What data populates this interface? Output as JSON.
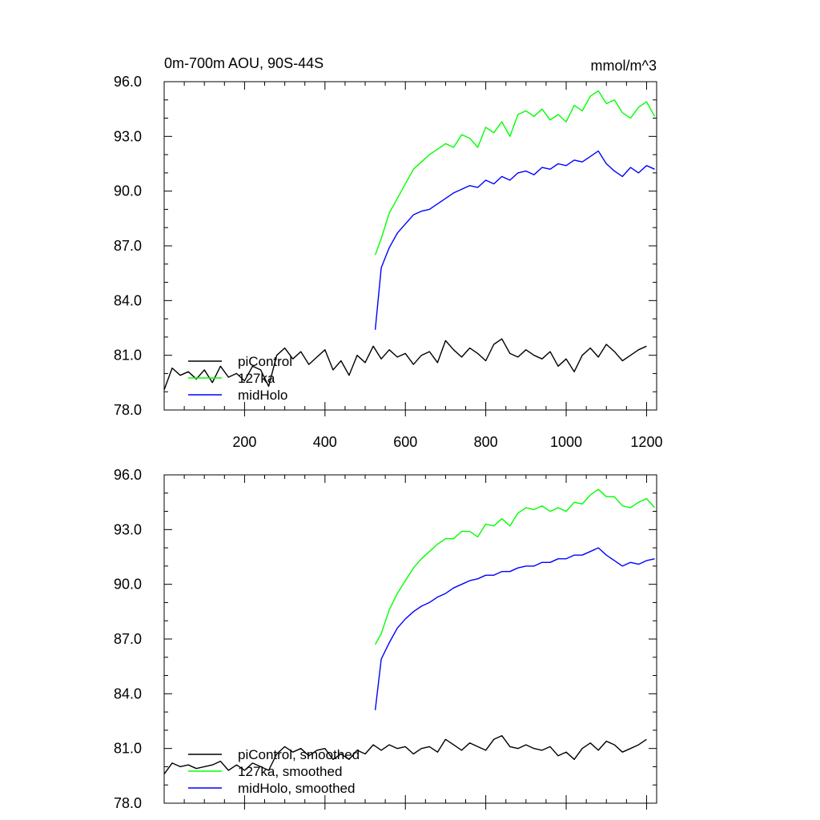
{
  "figure": {
    "title_left": "0m-700m AOU, 90S-44S",
    "title_right": "mmol/m^3"
  },
  "chart_data": [
    {
      "type": "line",
      "xlim": [
        0,
        1225
      ],
      "ylim": [
        78,
        96
      ],
      "yticks": [
        "78.0",
        "81.0",
        "84.0",
        "87.0",
        "90.0",
        "93.0",
        "96.0"
      ],
      "xticks": [
        "200",
        "400",
        "600",
        "800",
        "1000",
        "1200"
      ],
      "legend_position": "bottom-left",
      "series": [
        {
          "name": "piControl",
          "color": "#000000",
          "x": [
            0,
            20,
            40,
            60,
            80,
            100,
            120,
            140,
            160,
            180,
            200,
            220,
            240,
            260,
            280,
            300,
            320,
            340,
            360,
            380,
            400,
            420,
            440,
            460,
            480,
            500,
            520,
            540,
            560,
            580,
            600,
            620,
            640,
            660,
            680,
            700,
            720,
            740,
            760,
            780,
            800,
            820,
            840,
            860,
            880,
            900,
            920,
            940,
            960,
            980,
            1000,
            1020,
            1040,
            1060,
            1080,
            1100,
            1120,
            1140,
            1160,
            1180,
            1200
          ],
          "values": [
            79.1,
            80.3,
            79.9,
            80.1,
            79.7,
            80.2,
            79.5,
            80.4,
            79.8,
            80.0,
            79.6,
            80.4,
            80.2,
            79.3,
            81.0,
            81.4,
            80.8,
            81.2,
            80.5,
            80.9,
            81.3,
            80.2,
            80.7,
            79.9,
            81.0,
            80.6,
            81.5,
            80.8,
            81.3,
            80.9,
            81.1,
            80.5,
            81.0,
            81.2,
            80.6,
            81.8,
            81.3,
            80.9,
            81.4,
            81.1,
            80.7,
            81.6,
            81.9,
            81.1,
            80.9,
            81.3,
            81.0,
            80.8,
            81.2,
            80.4,
            80.8,
            80.1,
            81.0,
            81.4,
            80.9,
            81.6,
            81.2,
            80.7,
            81.0,
            81.3,
            81.5
          ]
        },
        {
          "name": "127ka",
          "color": "#00ff00",
          "x": [
            525,
            540,
            560,
            580,
            600,
            620,
            640,
            660,
            680,
            700,
            720,
            740,
            760,
            780,
            800,
            820,
            840,
            860,
            880,
            900,
            920,
            940,
            960,
            980,
            1000,
            1020,
            1040,
            1060,
            1080,
            1100,
            1120,
            1140,
            1160,
            1180,
            1200,
            1220
          ],
          "values": [
            86.5,
            87.4,
            88.8,
            89.6,
            90.4,
            91.2,
            91.6,
            92.0,
            92.3,
            92.6,
            92.4,
            93.1,
            92.9,
            92.4,
            93.5,
            93.2,
            93.8,
            93.0,
            94.2,
            94.4,
            94.1,
            94.5,
            93.9,
            94.2,
            93.8,
            94.7,
            94.4,
            95.2,
            95.5,
            94.8,
            95.0,
            94.3,
            94.0,
            94.6,
            94.9,
            94.1
          ]
        },
        {
          "name": "midHolo",
          "color": "#0000ff",
          "x": [
            525,
            540,
            560,
            580,
            600,
            620,
            640,
            660,
            680,
            700,
            720,
            740,
            760,
            780,
            800,
            820,
            840,
            860,
            880,
            900,
            920,
            940,
            960,
            980,
            1000,
            1020,
            1040,
            1060,
            1080,
            1100,
            1120,
            1140,
            1160,
            1180,
            1200,
            1220
          ],
          "values": [
            82.4,
            85.8,
            86.9,
            87.7,
            88.2,
            88.7,
            88.9,
            89.0,
            89.3,
            89.6,
            89.9,
            90.1,
            90.3,
            90.2,
            90.6,
            90.4,
            90.8,
            90.6,
            91.0,
            91.1,
            90.9,
            91.3,
            91.2,
            91.5,
            91.4,
            91.7,
            91.6,
            91.9,
            92.2,
            91.5,
            91.1,
            90.8,
            91.3,
            91.0,
            91.4,
            91.2
          ]
        }
      ]
    },
    {
      "type": "line",
      "xlim": [
        0,
        1225
      ],
      "ylim": [
        78,
        96
      ],
      "yticks": [
        "78.0",
        "81.0",
        "84.0",
        "87.0",
        "90.0",
        "93.0",
        "96.0"
      ],
      "xticks": [],
      "legend_position": "bottom-left",
      "series": [
        {
          "name": "piControl, smoothed",
          "color": "#000000",
          "x": [
            0,
            20,
            40,
            60,
            80,
            100,
            120,
            140,
            160,
            180,
            200,
            220,
            240,
            260,
            280,
            300,
            320,
            340,
            360,
            380,
            400,
            420,
            440,
            460,
            480,
            500,
            520,
            540,
            560,
            580,
            600,
            620,
            640,
            660,
            680,
            700,
            720,
            740,
            760,
            780,
            800,
            820,
            840,
            860,
            880,
            900,
            920,
            940,
            960,
            980,
            1000,
            1020,
            1040,
            1060,
            1080,
            1100,
            1120,
            1140,
            1160,
            1180,
            1200
          ],
          "values": [
            79.6,
            80.2,
            80.0,
            80.1,
            79.9,
            80.0,
            80.1,
            80.3,
            79.8,
            80.1,
            79.8,
            80.2,
            80.0,
            79.8,
            80.7,
            81.1,
            80.8,
            81.0,
            80.6,
            80.9,
            81.0,
            80.4,
            80.7,
            80.4,
            80.9,
            80.7,
            81.2,
            80.9,
            81.2,
            81.0,
            81.1,
            80.7,
            81.0,
            81.1,
            80.8,
            81.5,
            81.2,
            80.9,
            81.3,
            81.1,
            80.9,
            81.5,
            81.7,
            81.1,
            81.0,
            81.2,
            81.0,
            80.9,
            81.1,
            80.6,
            80.8,
            80.4,
            81.0,
            81.3,
            80.9,
            81.4,
            81.2,
            80.8,
            81.0,
            81.2,
            81.5
          ]
        },
        {
          "name": "127ka, smoothed",
          "color": "#00ff00",
          "x": [
            525,
            540,
            560,
            580,
            600,
            620,
            640,
            660,
            680,
            700,
            720,
            740,
            760,
            780,
            800,
            820,
            840,
            860,
            880,
            900,
            920,
            940,
            960,
            980,
            1000,
            1020,
            1040,
            1060,
            1080,
            1100,
            1120,
            1140,
            1160,
            1180,
            1200,
            1220
          ],
          "values": [
            86.7,
            87.3,
            88.6,
            89.5,
            90.2,
            90.9,
            91.4,
            91.8,
            92.2,
            92.5,
            92.5,
            92.9,
            92.9,
            92.6,
            93.3,
            93.2,
            93.6,
            93.2,
            93.9,
            94.2,
            94.1,
            94.3,
            94.0,
            94.2,
            94.0,
            94.5,
            94.4,
            94.9,
            95.2,
            94.8,
            94.8,
            94.3,
            94.2,
            94.5,
            94.7,
            94.2
          ]
        },
        {
          "name": "midHolo, smoothed",
          "color": "#0000ff",
          "x": [
            525,
            540,
            560,
            580,
            600,
            620,
            640,
            660,
            680,
            700,
            720,
            740,
            760,
            780,
            800,
            820,
            840,
            860,
            880,
            900,
            920,
            940,
            960,
            980,
            1000,
            1020,
            1040,
            1060,
            1080,
            1100,
            1120,
            1140,
            1160,
            1180,
            1200,
            1220
          ],
          "values": [
            83.1,
            85.9,
            86.8,
            87.6,
            88.1,
            88.5,
            88.8,
            89.0,
            89.3,
            89.5,
            89.8,
            90.0,
            90.2,
            90.3,
            90.5,
            90.5,
            90.7,
            90.7,
            90.9,
            91.0,
            91.0,
            91.2,
            91.2,
            91.4,
            91.4,
            91.6,
            91.6,
            91.8,
            92.0,
            91.6,
            91.3,
            91.0,
            91.2,
            91.1,
            91.3,
            91.4
          ]
        }
      ]
    }
  ]
}
